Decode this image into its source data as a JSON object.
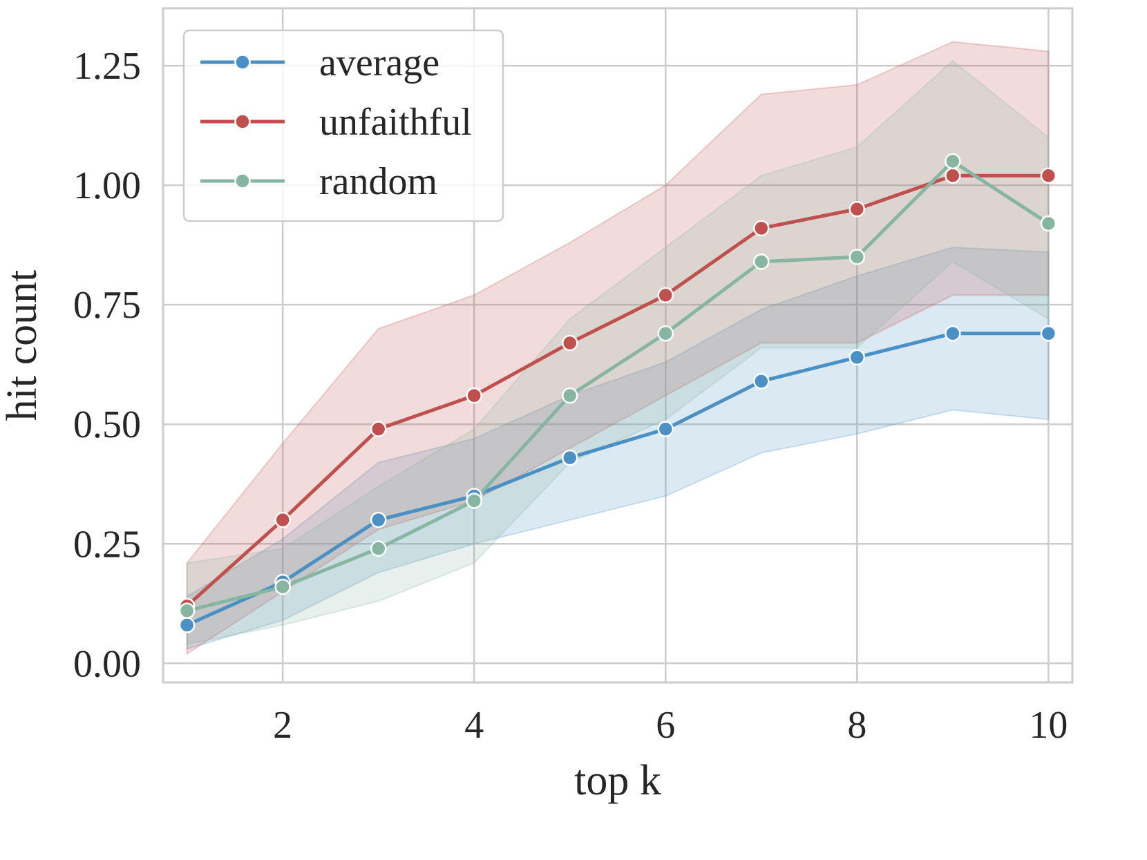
{
  "chart_data": {
    "type": "line",
    "title": "",
    "xlabel": "top k",
    "ylabel": "hit count",
    "xlim": [
      0.75,
      10.25
    ],
    "ylim": [
      -0.04,
      1.37
    ],
    "xticks": [
      2,
      4,
      6,
      8,
      10
    ],
    "xtick_labels": [
      "2",
      "4",
      "6",
      "8",
      "10"
    ],
    "yticks": [
      0.0,
      0.25,
      0.5,
      0.75,
      1.0,
      1.25
    ],
    "ytick_labels": [
      "0.00",
      "0.25",
      "0.50",
      "0.75",
      "1.00",
      "1.25"
    ],
    "grid": true,
    "legend_position": "top-left",
    "x": [
      1,
      2,
      3,
      4,
      5,
      6,
      7,
      8,
      9,
      10
    ],
    "series": [
      {
        "name": "average",
        "color": "#4a90c4",
        "values": [
          0.08,
          0.17,
          0.3,
          0.35,
          0.43,
          0.49,
          0.59,
          0.64,
          0.69,
          0.69
        ],
        "lower": [
          0.03,
          0.09,
          0.19,
          0.25,
          0.3,
          0.35,
          0.44,
          0.48,
          0.53,
          0.51
        ],
        "upper": [
          0.14,
          0.26,
          0.42,
          0.47,
          0.56,
          0.63,
          0.74,
          0.81,
          0.87,
          0.86
        ]
      },
      {
        "name": "unfaithful",
        "color": "#c0504d",
        "values": [
          0.12,
          0.3,
          0.49,
          0.56,
          0.67,
          0.77,
          0.91,
          0.95,
          1.02,
          1.02
        ],
        "lower": [
          0.02,
          0.15,
          0.28,
          0.34,
          0.45,
          0.56,
          0.67,
          0.67,
          0.77,
          0.77
        ],
        "upper": [
          0.21,
          0.46,
          0.7,
          0.77,
          0.88,
          1.0,
          1.19,
          1.21,
          1.3,
          1.28
        ]
      },
      {
        "name": "random",
        "color": "#86b5a1",
        "values": [
          0.11,
          0.16,
          0.24,
          0.34,
          0.56,
          0.69,
          0.84,
          0.85,
          1.05,
          0.92
        ],
        "lower": [
          0.04,
          0.08,
          0.13,
          0.21,
          0.42,
          0.51,
          0.66,
          0.66,
          0.84,
          0.72
        ],
        "upper": [
          0.21,
          0.24,
          0.37,
          0.49,
          0.72,
          0.87,
          1.02,
          1.08,
          1.26,
          1.1
        ]
      }
    ]
  }
}
